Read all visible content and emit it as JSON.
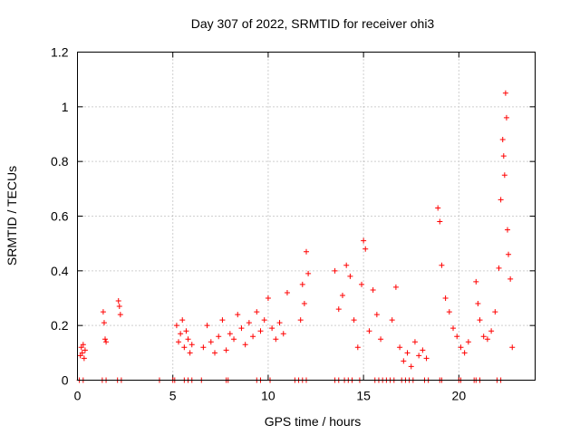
{
  "chart_data": {
    "type": "scatter",
    "title": "Day 307 of 2022, SRMTID for receiver ohi3",
    "xlabel": "GPS time / hours",
    "ylabel": "SRMTID / TECUs",
    "xlim": [
      0,
      24
    ],
    "ylim": [
      0,
      1.2
    ],
    "grid": true,
    "marker": "+",
    "color": "#ff0000",
    "x_ticks": [
      0,
      5,
      10,
      15,
      20
    ],
    "y_ticks": [
      0,
      0.2,
      0.4,
      0.6,
      0.8,
      1,
      1.2
    ],
    "x_tick_labels": [
      "0",
      "5",
      "10",
      "15",
      "20"
    ],
    "y_tick_labels": [
      "0",
      "0.2",
      "0.4",
      "0.6",
      "0.8",
      "1",
      "1.2"
    ],
    "series": [
      {
        "name": "SRMTID",
        "x": [
          0.15,
          0.2,
          0.25,
          0.3,
          0.35,
          0.4,
          1.35,
          1.4,
          1.45,
          1.5,
          2.15,
          2.2,
          2.25,
          5.2,
          5.3,
          5.4,
          5.5,
          5.6,
          5.7,
          5.8,
          5.9,
          6.0,
          6.6,
          6.8,
          7.0,
          7.2,
          7.4,
          7.6,
          7.8,
          8.0,
          8.2,
          8.4,
          8.6,
          8.8,
          9.0,
          9.2,
          9.4,
          9.6,
          9.8,
          10.0,
          10.2,
          10.4,
          10.6,
          10.8,
          11.0,
          11.7,
          11.8,
          11.9,
          12.0,
          12.1,
          13.5,
          13.7,
          13.9,
          14.1,
          14.3,
          14.5,
          14.7,
          14.9,
          15.0,
          15.1,
          15.3,
          15.5,
          15.7,
          15.9,
          16.5,
          16.7,
          16.9,
          17.1,
          17.3,
          17.5,
          17.7,
          17.9,
          18.1,
          18.3,
          18.9,
          19.0,
          19.1,
          19.3,
          19.5,
          19.7,
          19.9,
          20.1,
          20.3,
          20.5,
          20.9,
          21.0,
          21.1,
          21.3,
          21.5,
          21.7,
          21.9,
          22.1,
          22.2,
          22.3,
          22.35,
          22.4,
          22.45,
          22.5,
          22.55,
          22.6,
          22.7,
          22.8
        ],
        "y": [
          0.09,
          0.12,
          0.1,
          0.13,
          0.08,
          0.11,
          0.25,
          0.21,
          0.15,
          0.14,
          0.29,
          0.27,
          0.24,
          0.2,
          0.14,
          0.17,
          0.22,
          0.12,
          0.18,
          0.15,
          0.1,
          0.13,
          0.12,
          0.2,
          0.14,
          0.1,
          0.16,
          0.22,
          0.11,
          0.17,
          0.15,
          0.24,
          0.19,
          0.13,
          0.21,
          0.16,
          0.25,
          0.18,
          0.22,
          0.3,
          0.19,
          0.15,
          0.21,
          0.17,
          0.32,
          0.22,
          0.35,
          0.28,
          0.47,
          0.39,
          0.4,
          0.26,
          0.31,
          0.42,
          0.38,
          0.22,
          0.12,
          0.35,
          0.51,
          0.48,
          0.18,
          0.33,
          0.24,
          0.15,
          0.22,
          0.34,
          0.12,
          0.07,
          0.1,
          0.05,
          0.14,
          0.09,
          0.11,
          0.08,
          0.63,
          0.58,
          0.42,
          0.3,
          0.25,
          0.19,
          0.16,
          0.12,
          0.1,
          0.14,
          0.36,
          0.28,
          0.22,
          0.16,
          0.15,
          0.18,
          0.25,
          0.41,
          0.66,
          0.88,
          0.82,
          0.75,
          1.05,
          0.96,
          0.55,
          0.46,
          0.37,
          0.12
        ]
      }
    ],
    "zero_markers_x": [
      0.1,
      0.3,
      1.3,
      1.5,
      2.1,
      2.3,
      4.3,
      5.0,
      5.1,
      5.6,
      5.8,
      6.0,
      6.5,
      7.8,
      7.9,
      9.4,
      9.6,
      10.1,
      11.4,
      11.6,
      11.8,
      12.0,
      13.5,
      13.7,
      14.0,
      14.2,
      14.4,
      14.8,
      15.6,
      15.8,
      16.0,
      16.2,
      16.4,
      16.6,
      17.0,
      17.2,
      17.4,
      17.6,
      18.2,
      18.4,
      19.0,
      19.1,
      20.0,
      20.1,
      20.8,
      20.9,
      21.1,
      22.0,
      22.2
    ]
  }
}
